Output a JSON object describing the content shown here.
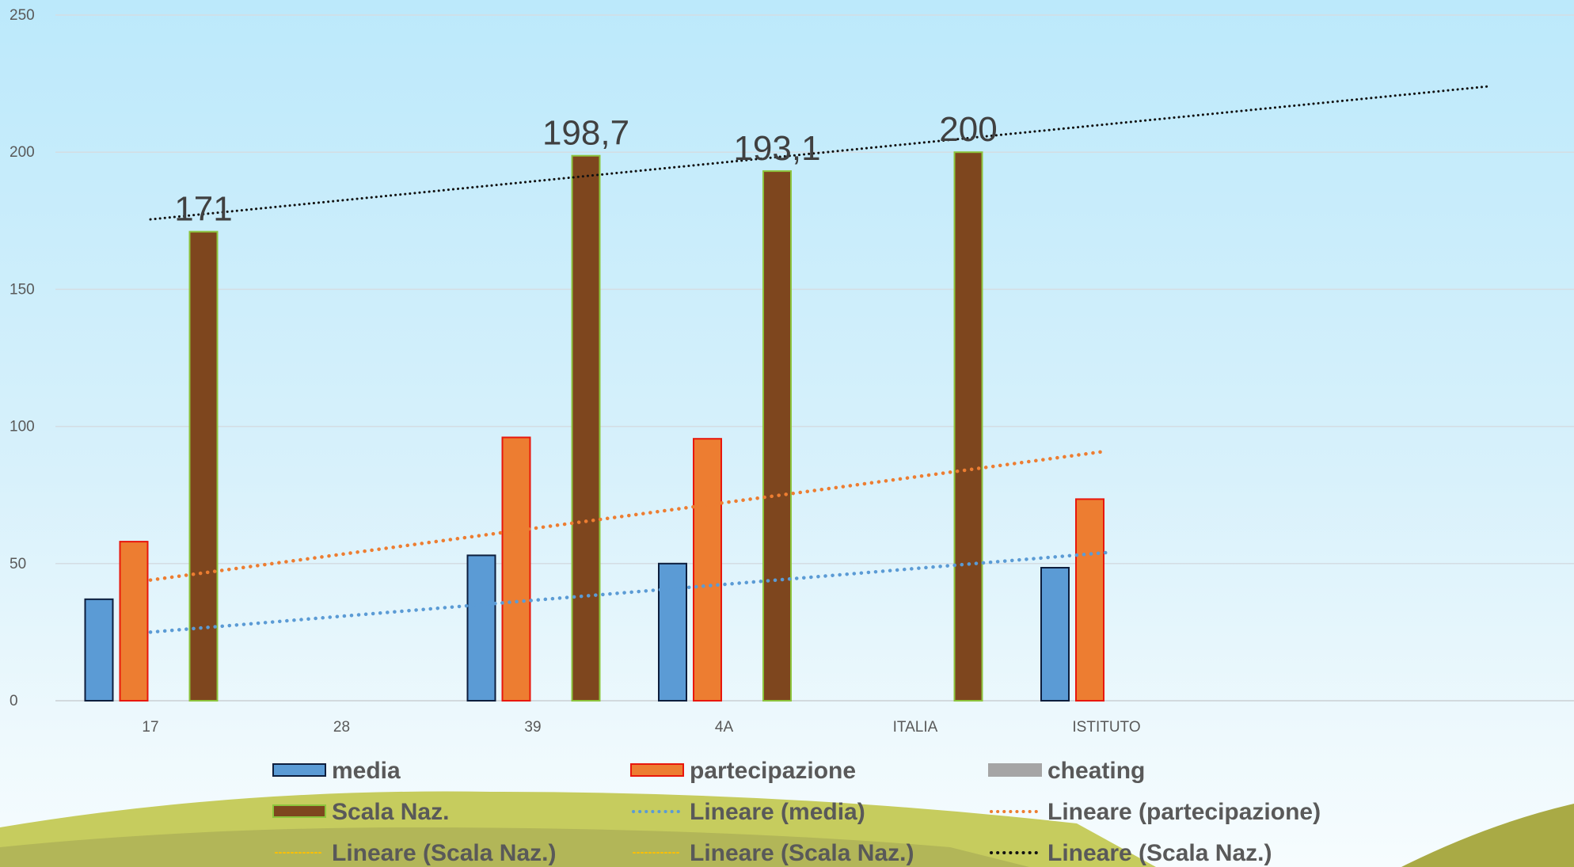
{
  "chart_data": {
    "type": "bar",
    "categories": [
      "17",
      "28",
      "39",
      "4A",
      "ITALIA",
      "ISTITUTO"
    ],
    "ylim": [
      0,
      250
    ],
    "yticks": [
      0,
      50,
      100,
      150,
      200,
      250
    ],
    "series": [
      {
        "name": "media",
        "values": [
          37,
          null,
          53,
          50,
          null,
          48.5
        ],
        "color": "#5b9bd5",
        "border": "#0d1e3d"
      },
      {
        "name": "partecipazione",
        "values": [
          58,
          null,
          96,
          95.5,
          null,
          73.5
        ],
        "color": "#ed7d31",
        "border": "#e8170c"
      },
      {
        "name": "cheating",
        "values": [
          null,
          null,
          null,
          null,
          null,
          null
        ],
        "color": "#a5a5a5",
        "border": "#a5a5a5"
      },
      {
        "name": "Scala Naz.",
        "values": [
          171,
          null,
          198.7,
          193.1,
          200,
          null
        ],
        "color": "#7e461e",
        "border": "#8cc43c"
      }
    ],
    "data_labels": [
      {
        "series": "Scala Naz.",
        "category": "17",
        "text": "171"
      },
      {
        "series": "Scala Naz.",
        "category": "39",
        "text": "198,7"
      },
      {
        "series": "Scala Naz.",
        "category": "4A",
        "text": "193,1"
      },
      {
        "series": "Scala Naz.",
        "category": "ITALIA",
        "text": "200"
      }
    ],
    "trendlines": [
      {
        "name": "Lineare (media)",
        "of": "media",
        "from": {
          "x": "17",
          "y": 25
        },
        "to": {
          "x": "ISTITUTO",
          "y": 54
        },
        "color": "#5b9bd5"
      },
      {
        "name": "Lineare (partecipazione)",
        "of": "partecipazione",
        "from": {
          "x": "17",
          "y": 44
        },
        "to": {
          "x": "ISTITUTO",
          "y": 91
        },
        "color": "#ed7d31"
      },
      {
        "name": "Lineare (Scala Naz.)",
        "of": "Scala Naz.",
        "from": {
          "x": "17",
          "y": 175.5
        },
        "to": {
          "x": "ISTITUTO",
          "y": 224
        },
        "color": "#111111"
      }
    ],
    "legend_position": "bottom",
    "legend": [
      {
        "label": "media",
        "kind": "bar",
        "color": "#5b9bd5",
        "border": "#0d1e3d"
      },
      {
        "label": "partecipazione",
        "kind": "bar",
        "color": "#ed7d31",
        "border": "#e8170c"
      },
      {
        "label": "cheating",
        "kind": "bar",
        "color": "#a5a5a5",
        "border": "#a5a5a5"
      },
      {
        "label": "Scala Naz.",
        "kind": "bar",
        "color": "#7e461e",
        "border": "#8cc43c"
      },
      {
        "label": "Lineare (media)",
        "kind": "dots",
        "color": "#5b9bd5"
      },
      {
        "label": "Lineare (partecipazione)",
        "kind": "dots",
        "color": "#ed7d31"
      },
      {
        "label": "Lineare (Scala Naz.)",
        "kind": "dots",
        "color": "#ffc000"
      },
      {
        "label": "Lineare (Scala Naz.)",
        "kind": "dots",
        "color": "#ffc000"
      },
      {
        "label": "Lineare (Scala Naz.)",
        "kind": "dots",
        "color": "#111111"
      }
    ],
    "grid": true
  }
}
